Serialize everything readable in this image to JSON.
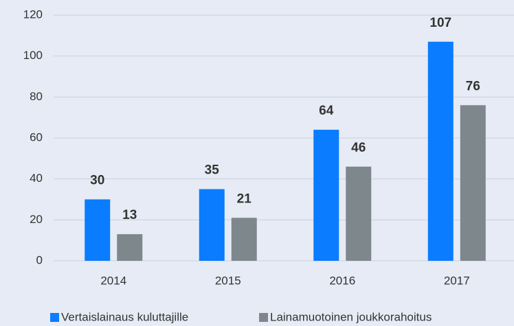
{
  "chart_data": {
    "type": "bar",
    "categories": [
      "2014",
      "2015",
      "2016",
      "2017"
    ],
    "series": [
      {
        "name": "Vertaislainaus kuluttajille",
        "color": "#0a7cff",
        "values": [
          30,
          35,
          64,
          107
        ]
      },
      {
        "name": "Lainamuotoinen joukkorahoitus",
        "color": "#7d878c",
        "values": [
          13,
          21,
          46,
          76
        ]
      }
    ],
    "ylim": [
      0,
      120
    ],
    "yticks": [
      0,
      20,
      40,
      60,
      80,
      100,
      120
    ],
    "grid": true,
    "legend": "bottom"
  }
}
